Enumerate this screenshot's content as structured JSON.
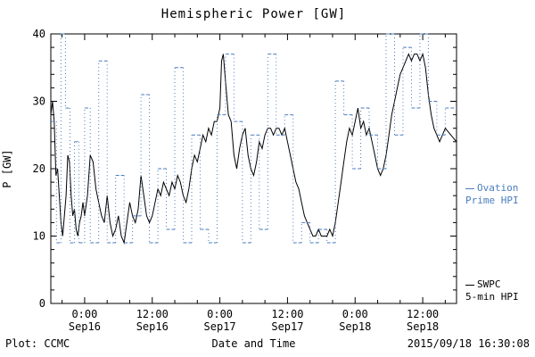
{
  "title": "Hemispheric Power [GW]",
  "footer": {
    "plot_source": "Plot: CCMC",
    "timestamp": "2015/09/18 16:30:08"
  },
  "legend": {
    "ovation": {
      "line1": "Ovation",
      "line2": "Prime HPI",
      "color": "#4a7dbd"
    },
    "swpc": {
      "line1": "SWPC",
      "line2": "5-min HPI",
      "color": "#000000"
    }
  },
  "chart_data": {
    "type": "line",
    "title": "Hemispheric Power [GW]",
    "xlabel": "Date and Time",
    "ylabel": "P [GW]",
    "ylim": [
      0,
      40
    ],
    "xlim": [
      -6,
      66
    ],
    "x_unit": "hours since 2015-09-16 00:00",
    "y_ticks": [
      0,
      10,
      20,
      30,
      40
    ],
    "y_minor_step": 2,
    "x_minor_step": 4,
    "grid": false,
    "legend_position": "right-outside",
    "x_ticks": [
      {
        "t": 0,
        "line1": "0:00",
        "line2": "Sep16"
      },
      {
        "t": 12,
        "line1": "12:00",
        "line2": "Sep16"
      },
      {
        "t": 24,
        "line1": "0:00",
        "line2": "Sep17"
      },
      {
        "t": 36,
        "line1": "12:00",
        "line2": "Sep17"
      },
      {
        "t": 48,
        "line1": "0:00",
        "line2": "Sep18"
      },
      {
        "t": 60,
        "line1": "12:00",
        "line2": "Sep18"
      }
    ],
    "series": [
      {
        "name": "SWPC 5-min HPI",
        "color": "#000000",
        "style": "solid-line",
        "points": [
          [
            -6,
            28
          ],
          [
            -5.7,
            30
          ],
          [
            -5.4,
            27
          ],
          [
            -5.1,
            19
          ],
          [
            -4.8,
            20
          ],
          [
            -4.5,
            16
          ],
          [
            -4.2,
            12
          ],
          [
            -3.9,
            10
          ],
          [
            -3.6,
            13
          ],
          [
            -3.3,
            16
          ],
          [
            -3,
            22
          ],
          [
            -2.7,
            21
          ],
          [
            -2.4,
            16
          ],
          [
            -2.1,
            13
          ],
          [
            -1.8,
            14
          ],
          [
            -1.5,
            11
          ],
          [
            -1.2,
            10
          ],
          [
            -0.9,
            12
          ],
          [
            -0.6,
            13
          ],
          [
            -0.3,
            15
          ],
          [
            0,
            13
          ],
          [
            0.5,
            16
          ],
          [
            1,
            22
          ],
          [
            1.5,
            21
          ],
          [
            2,
            17
          ],
          [
            2.5,
            15
          ],
          [
            3,
            13
          ],
          [
            3.5,
            12
          ],
          [
            4,
            16
          ],
          [
            4.5,
            12
          ],
          [
            5,
            10
          ],
          [
            5.5,
            11
          ],
          [
            6,
            13
          ],
          [
            6.5,
            10
          ],
          [
            7,
            9
          ],
          [
            7.5,
            12
          ],
          [
            8,
            15
          ],
          [
            8.5,
            13
          ],
          [
            9,
            12
          ],
          [
            9.5,
            14
          ],
          [
            10,
            19
          ],
          [
            10.5,
            16
          ],
          [
            11,
            13
          ],
          [
            11.5,
            12
          ],
          [
            12,
            13
          ],
          [
            12.5,
            15
          ],
          [
            13,
            17
          ],
          [
            13.5,
            16
          ],
          [
            14,
            18
          ],
          [
            14.5,
            17
          ],
          [
            15,
            16
          ],
          [
            15.5,
            18
          ],
          [
            16,
            17
          ],
          [
            16.5,
            19
          ],
          [
            17,
            18
          ],
          [
            17.5,
            16
          ],
          [
            18,
            15
          ],
          [
            18.5,
            17
          ],
          [
            19,
            20
          ],
          [
            19.5,
            22
          ],
          [
            20,
            21
          ],
          [
            20.5,
            23
          ],
          [
            21,
            25
          ],
          [
            21.5,
            24
          ],
          [
            22,
            26
          ],
          [
            22.5,
            25
          ],
          [
            23,
            27
          ],
          [
            23.5,
            27
          ],
          [
            24,
            29
          ],
          [
            24.3,
            36
          ],
          [
            24.6,
            37
          ],
          [
            25,
            33
          ],
          [
            25.5,
            28
          ],
          [
            26,
            27
          ],
          [
            26.5,
            22
          ],
          [
            27,
            20
          ],
          [
            27.5,
            23
          ],
          [
            28,
            25
          ],
          [
            28.5,
            26
          ],
          [
            29,
            22
          ],
          [
            29.5,
            20
          ],
          [
            30,
            19
          ],
          [
            30.5,
            21
          ],
          [
            31,
            24
          ],
          [
            31.5,
            23
          ],
          [
            32,
            25
          ],
          [
            32.5,
            26
          ],
          [
            33,
            26
          ],
          [
            33.5,
            25
          ],
          [
            34,
            26
          ],
          [
            34.5,
            26
          ],
          [
            35,
            25
          ],
          [
            35.5,
            26
          ],
          [
            36,
            24
          ],
          [
            36.5,
            22
          ],
          [
            37,
            20
          ],
          [
            37.5,
            18
          ],
          [
            38,
            17
          ],
          [
            38.5,
            15
          ],
          [
            39,
            13
          ],
          [
            39.5,
            12
          ],
          [
            40,
            11
          ],
          [
            40.5,
            10
          ],
          [
            41,
            10
          ],
          [
            41.5,
            11
          ],
          [
            42,
            10
          ],
          [
            42.5,
            10
          ],
          [
            43,
            10
          ],
          [
            43.5,
            11
          ],
          [
            44,
            10
          ],
          [
            44.5,
            12
          ],
          [
            45,
            15
          ],
          [
            45.5,
            18
          ],
          [
            46,
            21
          ],
          [
            46.5,
            24
          ],
          [
            47,
            26
          ],
          [
            47.5,
            25
          ],
          [
            48,
            27
          ],
          [
            48.5,
            29
          ],
          [
            49,
            26
          ],
          [
            49.5,
            27
          ],
          [
            50,
            25
          ],
          [
            50.5,
            26
          ],
          [
            51,
            24
          ],
          [
            51.5,
            22
          ],
          [
            52,
            20
          ],
          [
            52.5,
            19
          ],
          [
            53,
            20
          ],
          [
            53.5,
            22
          ],
          [
            54,
            25
          ],
          [
            54.5,
            28
          ],
          [
            55,
            30
          ],
          [
            55.5,
            32
          ],
          [
            56,
            34
          ],
          [
            56.5,
            35
          ],
          [
            57,
            36
          ],
          [
            57.5,
            37
          ],
          [
            58,
            36
          ],
          [
            58.5,
            37
          ],
          [
            59,
            37
          ],
          [
            59.5,
            36
          ],
          [
            60,
            37
          ],
          [
            60.5,
            35
          ],
          [
            61,
            31
          ],
          [
            61.5,
            28
          ],
          [
            62,
            26
          ],
          [
            62.5,
            25
          ],
          [
            63,
            24
          ],
          [
            64,
            26
          ],
          [
            65,
            25
          ],
          [
            66,
            24
          ]
        ]
      },
      {
        "name": "Ovation Prime HPI",
        "color": "#4a7dbd",
        "style": "step-dotted",
        "points": [
          [
            -6,
            27
          ],
          [
            -5,
            9
          ],
          [
            -4.2,
            40
          ],
          [
            -3.4,
            29
          ],
          [
            -2.6,
            9
          ],
          [
            -1.8,
            24
          ],
          [
            -1,
            9
          ],
          [
            0,
            29
          ],
          [
            1,
            9
          ],
          [
            2.5,
            36
          ],
          [
            4,
            9
          ],
          [
            5.5,
            19
          ],
          [
            7,
            9
          ],
          [
            8.5,
            13
          ],
          [
            10,
            31
          ],
          [
            11.5,
            9
          ],
          [
            13,
            20
          ],
          [
            14.5,
            11
          ],
          [
            16,
            35
          ],
          [
            17.5,
            9
          ],
          [
            19,
            25
          ],
          [
            20.5,
            11
          ],
          [
            22,
            9
          ],
          [
            23.5,
            28
          ],
          [
            25,
            37
          ],
          [
            26.5,
            27
          ],
          [
            28,
            9
          ],
          [
            29.5,
            25
          ],
          [
            31,
            11
          ],
          [
            32.5,
            37
          ],
          [
            34,
            25
          ],
          [
            35.5,
            28
          ],
          [
            37,
            9
          ],
          [
            38.5,
            12
          ],
          [
            40,
            9
          ],
          [
            41.5,
            11
          ],
          [
            43,
            9
          ],
          [
            44.5,
            33
          ],
          [
            46,
            28
          ],
          [
            47.5,
            20
          ],
          [
            49,
            29
          ],
          [
            50.5,
            25
          ],
          [
            52,
            20
          ],
          [
            53.5,
            40
          ],
          [
            55,
            25
          ],
          [
            56.5,
            38
          ],
          [
            58,
            29
          ],
          [
            59.5,
            40
          ],
          [
            61,
            30
          ],
          [
            62.5,
            25
          ],
          [
            64,
            29
          ]
        ]
      }
    ]
  }
}
